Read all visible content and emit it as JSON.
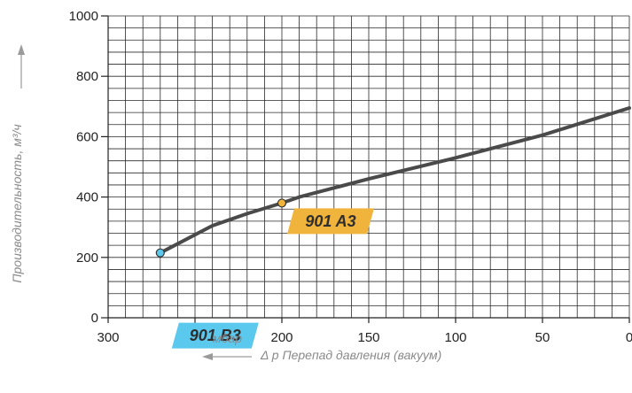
{
  "chart_data": {
    "type": "line",
    "title": "",
    "ylabel": "Производительность, м³/ч",
    "xlabel_unit": "мбар",
    "xlabel": "Δ p Перепад давления (вакуум)",
    "xlim": [
      300,
      0
    ],
    "ylim": [
      0,
      1000
    ],
    "x_ticks": [
      "300",
      "250",
      "200",
      "150",
      "100",
      "50",
      "0"
    ],
    "y_ticks": [
      "0",
      "200",
      "400",
      "600",
      "800",
      "1000"
    ],
    "grid": true,
    "series": [
      {
        "name": "",
        "x": [
          270,
          240,
          220,
          200,
          190,
          150,
          100,
          50,
          0
        ],
        "y": [
          215,
          305,
          345,
          380,
          400,
          460,
          530,
          605,
          695
        ]
      }
    ],
    "markers": [
      {
        "label": "901 B3",
        "x": 270,
        "y": 215,
        "color": "#5bc8ee",
        "tag_color": "#5bc8ee"
      },
      {
        "label": "901 A3",
        "x": 200,
        "y": 380,
        "color": "#f0b43c",
        "tag_color": "#f0b43c"
      }
    ]
  }
}
